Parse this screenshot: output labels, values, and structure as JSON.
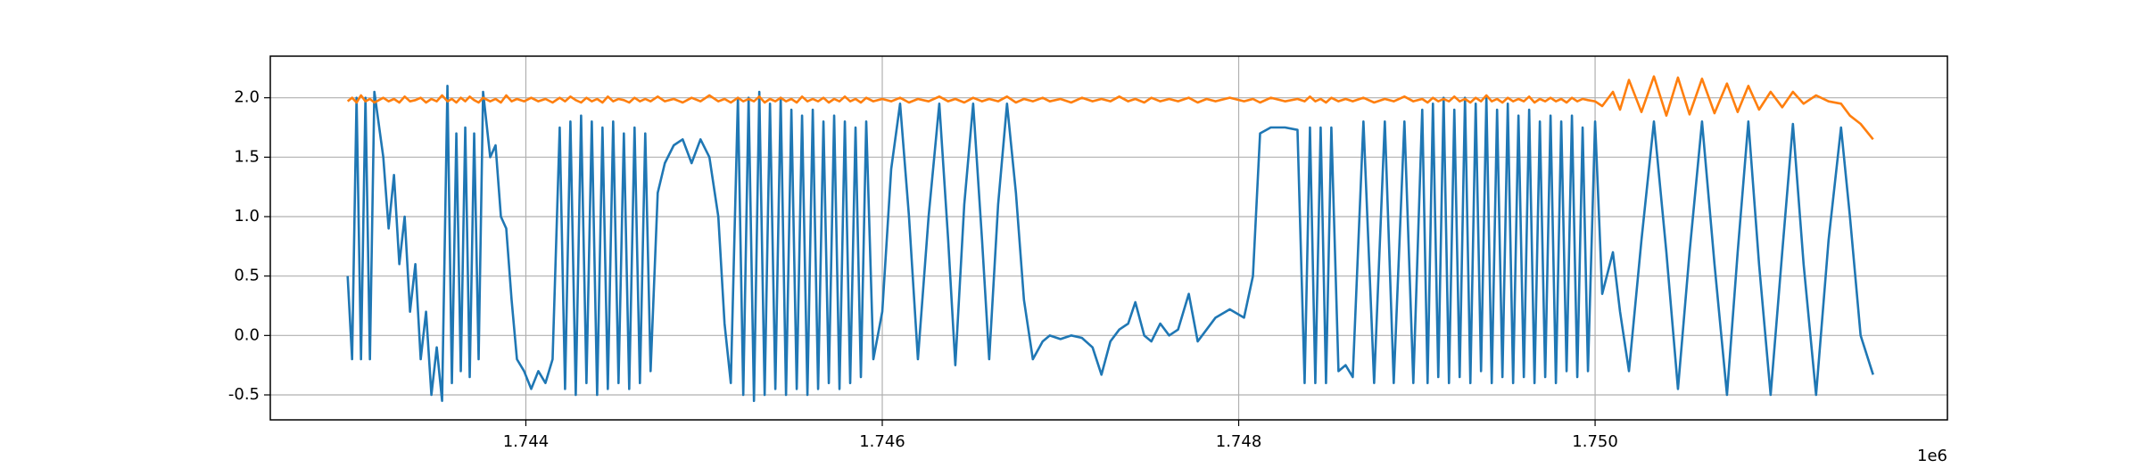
{
  "chart_data": {
    "type": "line",
    "x_offset_label": "1e6",
    "grid": true,
    "xlim": [
      1742566,
      1751977
    ],
    "ylim": [
      -0.71,
      2.35
    ],
    "xticks": [
      {
        "value": 1744000,
        "label": "1.744"
      },
      {
        "value": 1746000,
        "label": "1.746"
      },
      {
        "value": 1748000,
        "label": "1.748"
      },
      {
        "value": 1750000,
        "label": "1.750"
      }
    ],
    "yticks": [
      -0.5,
      {
        "value": 0,
        "label": "0.0"
      },
      0.5,
      {
        "value": 1,
        "label": "1.0"
      },
      1.5,
      {
        "value": 2,
        "label": "2.0"
      }
    ],
    "x": [
      1743000,
      1743025,
      1743050,
      1743075,
      1743100,
      1743125,
      1743150,
      1743200,
      1743230,
      1743260,
      1743290,
      1743320,
      1743350,
      1743380,
      1743410,
      1743440,
      1743470,
      1743500,
      1743530,
      1743560,
      1743585,
      1743610,
      1743635,
      1743660,
      1743685,
      1743710,
      1743735,
      1743760,
      1743800,
      1743830,
      1743860,
      1743890,
      1743920,
      1743950,
      1743990,
      1744030,
      1744070,
      1744110,
      1744150,
      1744190,
      1744220,
      1744250,
      1744280,
      1744310,
      1744340,
      1744370,
      1744400,
      1744430,
      1744460,
      1744490,
      1744520,
      1744550,
      1744580,
      1744610,
      1744640,
      1744670,
      1744700,
      1744740,
      1744780,
      1744830,
      1744880,
      1744930,
      1744980,
      1745030,
      1745080,
      1745115,
      1745150,
      1745190,
      1745220,
      1745250,
      1745280,
      1745310,
      1745340,
      1745370,
      1745400,
      1745430,
      1745460,
      1745490,
      1745520,
      1745550,
      1745580,
      1745610,
      1745640,
      1745670,
      1745700,
      1745730,
      1745760,
      1745790,
      1745820,
      1745850,
      1745880,
      1745910,
      1745950,
      1746000,
      1746050,
      1746100,
      1746150,
      1746200,
      1746260,
      1746320,
      1746370,
      1746410,
      1746460,
      1746510,
      1746560,
      1746600,
      1746650,
      1746700,
      1746750,
      1746795,
      1746845,
      1746900,
      1746940,
      1747000,
      1747060,
      1747120,
      1747180,
      1747230,
      1747280,
      1747330,
      1747380,
      1747420,
      1747470,
      1747510,
      1747560,
      1747610,
      1747660,
      1747720,
      1747770,
      1747820,
      1747870,
      1747950,
      1748030,
      1748080,
      1748120,
      1748180,
      1748260,
      1748330,
      1748370,
      1748400,
      1748430,
      1748460,
      1748490,
      1748520,
      1748560,
      1748600,
      1748640,
      1748700,
      1748760,
      1748820,
      1748870,
      1748930,
      1748980,
      1749030,
      1749060,
      1749090,
      1749120,
      1749150,
      1749180,
      1749210,
      1749240,
      1749270,
      1749300,
      1749330,
      1749360,
      1749390,
      1749420,
      1749450,
      1749480,
      1749510,
      1749540,
      1749570,
      1749600,
      1749630,
      1749660,
      1749690,
      1749720,
      1749750,
      1749780,
      1749810,
      1749840,
      1749870,
      1749900,
      1749930,
      1749960,
      1750000,
      1750040,
      1750100,
      1750140,
      1750190,
      1750260,
      1750330,
      1750400,
      1750465,
      1750530,
      1750600,
      1750670,
      1750740,
      1750800,
      1750860,
      1750920,
      1750985,
      1751050,
      1751110,
      1751170,
      1751240,
      1751310,
      1751380,
      1751430,
      1751490,
      1751560
    ],
    "series": [
      {
        "color": "#1f77b4",
        "values": [
          0.5,
          -0.2,
          2.0,
          -0.2,
          2.0,
          -0.2,
          2.05,
          1.5,
          0.9,
          1.35,
          0.6,
          1.0,
          0.2,
          0.6,
          -0.2,
          0.2,
          -0.5,
          -0.1,
          -0.55,
          2.1,
          -0.4,
          1.7,
          -0.3,
          1.75,
          -0.35,
          1.7,
          -0.2,
          2.05,
          1.5,
          1.6,
          1.0,
          0.9,
          0.3,
          -0.2,
          -0.3,
          -0.45,
          -0.3,
          -0.4,
          -0.2,
          1.75,
          -0.45,
          1.8,
          -0.5,
          1.85,
          -0.4,
          1.8,
          -0.5,
          1.75,
          -0.45,
          1.8,
          -0.4,
          1.7,
          -0.45,
          1.75,
          -0.4,
          1.7,
          -0.3,
          1.2,
          1.45,
          1.6,
          1.65,
          1.45,
          1.65,
          1.5,
          1.0,
          0.1,
          -0.4,
          2.0,
          -0.5,
          2.0,
          -0.55,
          2.05,
          -0.5,
          1.95,
          -0.45,
          2.0,
          -0.5,
          1.9,
          -0.45,
          1.85,
          -0.5,
          1.9,
          -0.45,
          1.8,
          -0.4,
          1.85,
          -0.45,
          1.8,
          -0.4,
          1.75,
          -0.35,
          1.8,
          -0.2,
          0.2,
          1.4,
          1.95,
          1.0,
          -0.2,
          1.0,
          1.95,
          0.8,
          -0.25,
          1.1,
          1.95,
          0.8,
          -0.2,
          1.1,
          1.95,
          1.2,
          0.3,
          -0.2,
          -0.05,
          0.0,
          -0.03,
          0.0,
          -0.02,
          -0.1,
          -0.33,
          -0.05,
          0.05,
          0.1,
          0.28,
          0.0,
          -0.05,
          0.1,
          0.0,
          0.05,
          0.35,
          -0.05,
          0.05,
          0.15,
          0.22,
          0.15,
          0.5,
          1.7,
          1.75,
          1.75,
          1.73,
          -0.4,
          1.75,
          -0.4,
          1.75,
          -0.4,
          1.75,
          -0.3,
          -0.25,
          -0.35,
          1.8,
          -0.4,
          1.8,
          -0.4,
          1.8,
          -0.4,
          1.9,
          -0.4,
          1.95,
          -0.35,
          2.0,
          -0.4,
          1.9,
          -0.35,
          2.0,
          -0.4,
          1.95,
          -0.3,
          2.0,
          -0.4,
          1.9,
          -0.35,
          1.95,
          -0.4,
          1.85,
          -0.35,
          1.9,
          -0.4,
          1.8,
          -0.35,
          1.85,
          -0.4,
          1.8,
          -0.3,
          1.85,
          -0.35,
          1.75,
          -0.3,
          1.8,
          0.35,
          0.7,
          0.2,
          -0.3,
          0.8,
          1.8,
          0.7,
          -0.45,
          0.7,
          1.8,
          0.6,
          -0.5,
          0.7,
          1.8,
          0.6,
          -0.5,
          0.7,
          1.78,
          0.6,
          -0.5,
          0.8,
          1.75,
          1.0,
          0.0,
          -0.33
        ]
      },
      {
        "color": "#ff7f0e",
        "values": [
          1.97,
          2.0,
          1.96,
          2.02,
          1.97,
          1.99,
          1.96,
          2.0,
          1.97,
          1.99,
          1.96,
          2.01,
          1.97,
          1.98,
          2.0,
          1.96,
          1.99,
          1.97,
          2.02,
          1.97,
          1.99,
          1.96,
          2.0,
          1.97,
          2.01,
          1.98,
          1.96,
          2.0,
          1.97,
          1.99,
          1.96,
          2.02,
          1.97,
          1.99,
          1.97,
          2.0,
          1.97,
          1.99,
          1.96,
          2.0,
          1.97,
          2.01,
          1.98,
          1.96,
          2.0,
          1.97,
          1.99,
          1.96,
          2.01,
          1.97,
          1.99,
          1.98,
          1.96,
          2.0,
          1.97,
          1.99,
          1.97,
          2.01,
          1.97,
          1.99,
          1.96,
          2.0,
          1.97,
          2.02,
          1.97,
          1.99,
          1.96,
          2.0,
          1.97,
          1.99,
          1.97,
          2.01,
          1.96,
          1.99,
          1.97,
          2.0,
          1.97,
          1.99,
          1.96,
          2.01,
          1.97,
          1.99,
          1.97,
          2.0,
          1.96,
          1.99,
          1.97,
          2.01,
          1.97,
          1.99,
          1.96,
          2.0,
          1.97,
          1.99,
          1.97,
          2.0,
          1.96,
          1.99,
          1.97,
          2.01,
          1.97,
          1.99,
          1.96,
          2.0,
          1.97,
          1.99,
          1.97,
          2.01,
          1.96,
          1.99,
          1.97,
          2.0,
          1.97,
          1.99,
          1.96,
          2.0,
          1.97,
          1.99,
          1.97,
          2.01,
          1.97,
          1.99,
          1.96,
          2.0,
          1.97,
          1.99,
          1.97,
          2.0,
          1.96,
          1.99,
          1.97,
          2.0,
          1.97,
          1.99,
          1.96,
          2.0,
          1.97,
          1.99,
          1.97,
          2.01,
          1.97,
          1.99,
          1.96,
          2.0,
          1.97,
          1.99,
          1.97,
          2.0,
          1.96,
          1.99,
          1.97,
          2.01,
          1.97,
          1.99,
          1.96,
          2.0,
          1.97,
          1.99,
          1.97,
          2.01,
          1.97,
          1.99,
          1.96,
          2.0,
          1.97,
          2.02,
          1.97,
          1.99,
          1.96,
          2.0,
          1.97,
          1.99,
          1.97,
          2.01,
          1.96,
          1.99,
          1.97,
          2.0,
          1.97,
          1.99,
          1.96,
          2.0,
          1.97,
          1.99,
          1.98,
          1.97,
          1.93,
          2.05,
          1.9,
          2.15,
          1.88,
          2.18,
          1.85,
          2.17,
          1.86,
          2.16,
          1.87,
          2.12,
          1.88,
          2.1,
          1.9,
          2.05,
          1.92,
          2.05,
          1.95,
          2.02,
          1.97,
          1.95,
          1.85,
          1.78,
          1.65
        ]
      }
    ]
  }
}
